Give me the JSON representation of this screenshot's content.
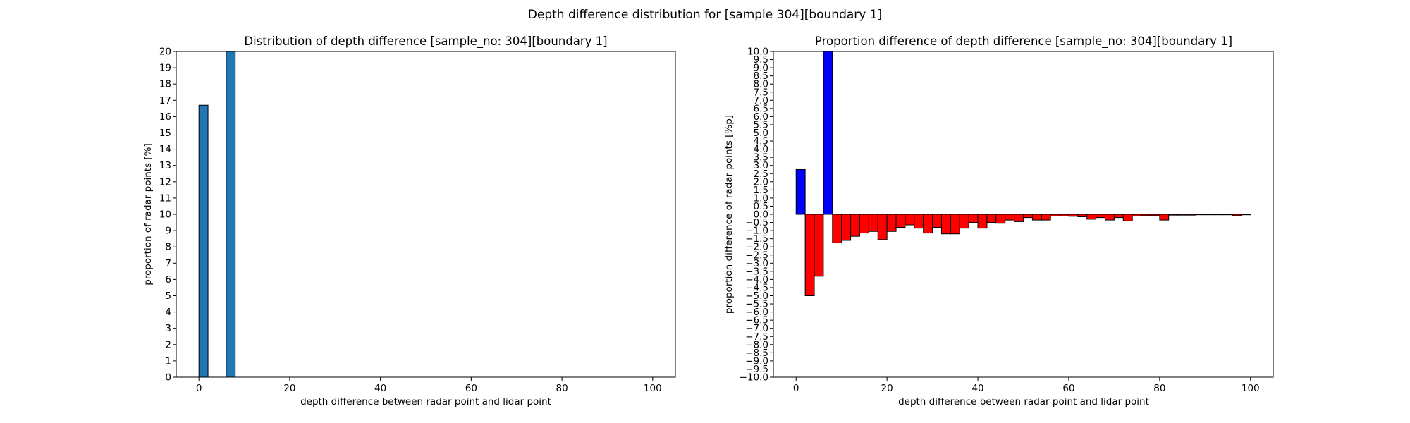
{
  "figure": {
    "title": "Depth difference distribution for [sample 304][boundary 1]"
  },
  "chart_data": [
    {
      "type": "bar",
      "title": "Distribution of depth difference [sample_no: 304][boundary 1]",
      "xlabel": "depth difference between radar point and lidar point",
      "ylabel": "proportion of radar points [%]",
      "xlim": [
        -5,
        105
      ],
      "ylim": [
        0,
        20
      ],
      "xticks": [
        0,
        20,
        40,
        60,
        80,
        100
      ],
      "yticks": [
        0,
        1,
        2,
        3,
        4,
        5,
        6,
        7,
        8,
        9,
        10,
        11,
        12,
        13,
        14,
        15,
        16,
        17,
        18,
        19,
        20
      ],
      "bin_width": 2,
      "bar_color": "#1f77b4",
      "edge_color": "#000000",
      "grid": false,
      "bars": [
        {
          "x": 1,
          "value": 16.7
        },
        {
          "x": 7,
          "value": 20
        }
      ]
    },
    {
      "type": "bar",
      "title": "Proportion difference of depth difference [sample_no: 304][boundary 1]",
      "xlabel": "depth difference between radar point and lidar point",
      "ylabel": "proportion difference of radar points [%p]",
      "xlim": [
        -5,
        105
      ],
      "ylim": [
        -10,
        10
      ],
      "xticks": [
        0,
        20,
        40,
        60,
        80,
        100
      ],
      "ytick_step": 0.5,
      "bin_width": 2,
      "positive_color": "#0000ff",
      "negative_color": "#ff0000",
      "edge_color": "#000000",
      "grid": false,
      "bars": [
        {
          "x": 1,
          "value": 2.75
        },
        {
          "x": 3,
          "value": -5.0
        },
        {
          "x": 5,
          "value": -3.8
        },
        {
          "x": 7,
          "value": 10.0
        },
        {
          "x": 9,
          "value": -1.75
        },
        {
          "x": 11,
          "value": -1.6
        },
        {
          "x": 13,
          "value": -1.35
        },
        {
          "x": 15,
          "value": -1.15
        },
        {
          "x": 17,
          "value": -1.05
        },
        {
          "x": 19,
          "value": -1.55
        },
        {
          "x": 21,
          "value": -1.05
        },
        {
          "x": 23,
          "value": -0.8
        },
        {
          "x": 25,
          "value": -0.65
        },
        {
          "x": 27,
          "value": -0.85
        },
        {
          "x": 29,
          "value": -1.15
        },
        {
          "x": 31,
          "value": -0.8
        },
        {
          "x": 33,
          "value": -1.2
        },
        {
          "x": 35,
          "value": -1.2
        },
        {
          "x": 37,
          "value": -0.85
        },
        {
          "x": 39,
          "value": -0.5
        },
        {
          "x": 41,
          "value": -0.85
        },
        {
          "x": 43,
          "value": -0.5
        },
        {
          "x": 45,
          "value": -0.55
        },
        {
          "x": 47,
          "value": -0.35
        },
        {
          "x": 49,
          "value": -0.45
        },
        {
          "x": 51,
          "value": -0.2
        },
        {
          "x": 53,
          "value": -0.35
        },
        {
          "x": 55,
          "value": -0.35
        },
        {
          "x": 57,
          "value": -0.1
        },
        {
          "x": 59,
          "value": -0.1
        },
        {
          "x": 61,
          "value": -0.12
        },
        {
          "x": 63,
          "value": -0.15
        },
        {
          "x": 65,
          "value": -0.3
        },
        {
          "x": 67,
          "value": -0.2
        },
        {
          "x": 69,
          "value": -0.35
        },
        {
          "x": 71,
          "value": -0.2
        },
        {
          "x": 73,
          "value": -0.4
        },
        {
          "x": 75,
          "value": -0.1
        },
        {
          "x": 77,
          "value": -0.08
        },
        {
          "x": 79,
          "value": -0.08
        },
        {
          "x": 81,
          "value": -0.35
        },
        {
          "x": 83,
          "value": -0.05
        },
        {
          "x": 85,
          "value": -0.05
        },
        {
          "x": 87,
          "value": -0.05
        },
        {
          "x": 89,
          "value": -0.03
        },
        {
          "x": 91,
          "value": -0.03
        },
        {
          "x": 93,
          "value": -0.03
        },
        {
          "x": 95,
          "value": -0.03
        },
        {
          "x": 97,
          "value": -0.08
        },
        {
          "x": 99,
          "value": -0.03
        }
      ]
    }
  ]
}
